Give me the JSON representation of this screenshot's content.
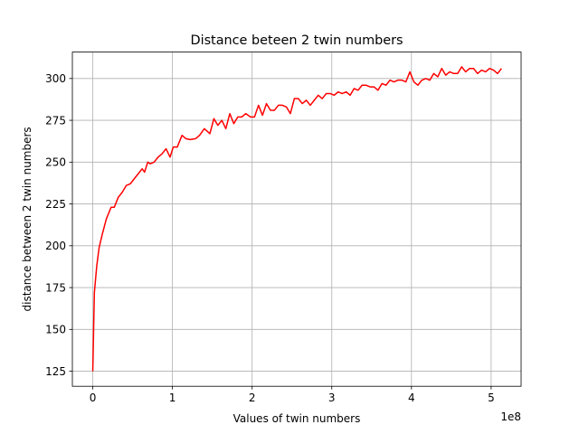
{
  "chart_data": {
    "type": "line",
    "title": "Distance beteen 2 twin numbers",
    "xlabel": "Values of twin numbers",
    "ylabel": "distance between 2 twin numbers",
    "x_offset_label": "1e8",
    "xlim": [
      -0.256,
      5.376
    ],
    "ylim": [
      116.0,
      315.8
    ],
    "xticks": [
      0,
      1,
      2,
      3,
      4,
      5
    ],
    "xtick_labels": [
      "0",
      "1",
      "2",
      "3",
      "4",
      "5"
    ],
    "yticks": [
      125,
      150,
      175,
      200,
      225,
      250,
      275,
      300
    ],
    "ytick_labels": [
      "125",
      "150",
      "175",
      "200",
      "225",
      "250",
      "275",
      "300"
    ],
    "grid": true,
    "line_color": "#ff0000",
    "series": [
      {
        "x": [
          0.0,
          0.02,
          0.05,
          0.08,
          0.12,
          0.17,
          0.23,
          0.27,
          0.32,
          0.37,
          0.42,
          0.47,
          0.57,
          0.62,
          0.65,
          0.69,
          0.72,
          0.77,
          0.82,
          0.87,
          0.92,
          0.97,
          1.01,
          1.06,
          1.12,
          1.17,
          1.22,
          1.29,
          1.34,
          1.4,
          1.47,
          1.52,
          1.57,
          1.62,
          1.67,
          1.72,
          1.77,
          1.82,
          1.87,
          1.92,
          1.98,
          2.03,
          2.08,
          2.13,
          2.18,
          2.23,
          2.28,
          2.33,
          2.38,
          2.43,
          2.48,
          2.53,
          2.58,
          2.63,
          2.68,
          2.73,
          2.78,
          2.83,
          2.88,
          2.93,
          2.98,
          3.03,
          3.08,
          3.13,
          3.18,
          3.23,
          3.28,
          3.33,
          3.38,
          3.43,
          3.48,
          3.53,
          3.58,
          3.63,
          3.68,
          3.73,
          3.78,
          3.83,
          3.88,
          3.93,
          3.98,
          4.03,
          4.08,
          4.13,
          4.18,
          4.23,
          4.28,
          4.33,
          4.38,
          4.43,
          4.48,
          4.53,
          4.58,
          4.63,
          4.68,
          4.73,
          4.78,
          4.83,
          4.88,
          4.93,
          4.98,
          5.03,
          5.08,
          5.13
        ],
        "y": [
          125.0,
          172.0,
          188.0,
          199.0,
          207.0,
          216.0,
          223.0,
          223.0,
          229.0,
          232.0,
          236.0,
          237.0,
          243.0,
          246.0,
          244.0,
          250.0,
          249.0,
          250.0,
          253.0,
          255.0,
          258.0,
          253.0,
          259.0,
          259.0,
          266.0,
          264.0,
          263.5,
          264.0,
          266.0,
          270.0,
          267.0,
          276.0,
          272.0,
          275.0,
          270.0,
          279.0,
          273.0,
          277.0,
          277.0,
          279.0,
          277.0,
          277.0,
          284.0,
          278.0,
          285.0,
          281.0,
          281.0,
          284.0,
          284.0,
          283.0,
          279.0,
          288.0,
          288.0,
          285.0,
          287.0,
          284.0,
          287.0,
          290.0,
          288.0,
          291.0,
          291.0,
          290.0,
          292.0,
          291.0,
          292.0,
          290.0,
          294.0,
          293.0,
          296.0,
          296.0,
          295.0,
          295.0,
          293.0,
          297.0,
          296.0,
          299.0,
          298.0,
          299.0,
          299.0,
          298.0,
          304.0,
          298.0,
          296.0,
          299.0,
          300.0,
          299.0,
          303.0,
          301.0,
          306.0,
          302.0,
          304.0,
          303.0,
          303.0,
          307.0,
          304.0,
          306.0,
          306.0,
          303.0,
          305.0,
          304.0,
          306.0,
          305.0,
          303.0,
          306.0
        ]
      }
    ]
  }
}
